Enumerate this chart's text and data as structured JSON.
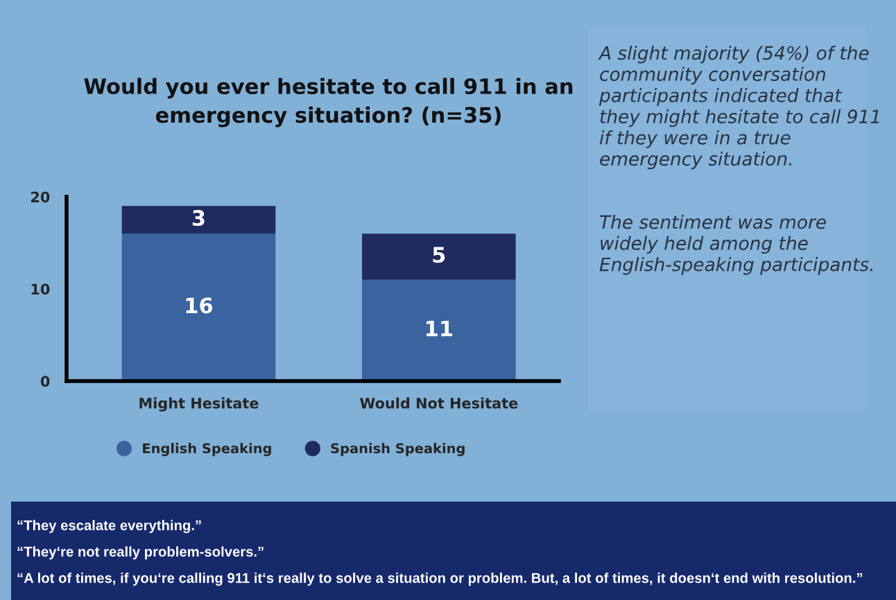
{
  "chart_data": {
    "type": "bar",
    "title": "Would you ever hesitate to call 911 in an\nemergency situation? (n=35)",
    "categories": [
      "Might Hesitate",
      "Would Not Hesitate"
    ],
    "series": [
      {
        "name": "English Speaking",
        "color": "#3a64a0",
        "values": [
          16,
          11
        ]
      },
      {
        "name": "Spanish Speaking",
        "color": "#1f2b5e",
        "values": [
          3,
          5
        ]
      }
    ],
    "stacked": true,
    "data_labels": true,
    "ylim": [
      0,
      20
    ],
    "yticks": [
      0,
      10,
      20
    ],
    "grid": false,
    "legend": "bottom",
    "annotations": [
      "A slight majority (54%) of the\ncommunity conversation\nparticipants indicated that\nthey might hesitate to call 911\nif they were in a true\nemergency situation.",
      "The sentiment was more\nwidely held among the\nEnglish-speaking participants.",
      "“They escalate everything.”",
      "“They‘re not really problem-solvers.”",
      "“A lot of times, if you‘re calling 911 it‘s really to solve a situation or problem. But, a lot of times, it doesn‘t end with resolution.”"
    ]
  }
}
